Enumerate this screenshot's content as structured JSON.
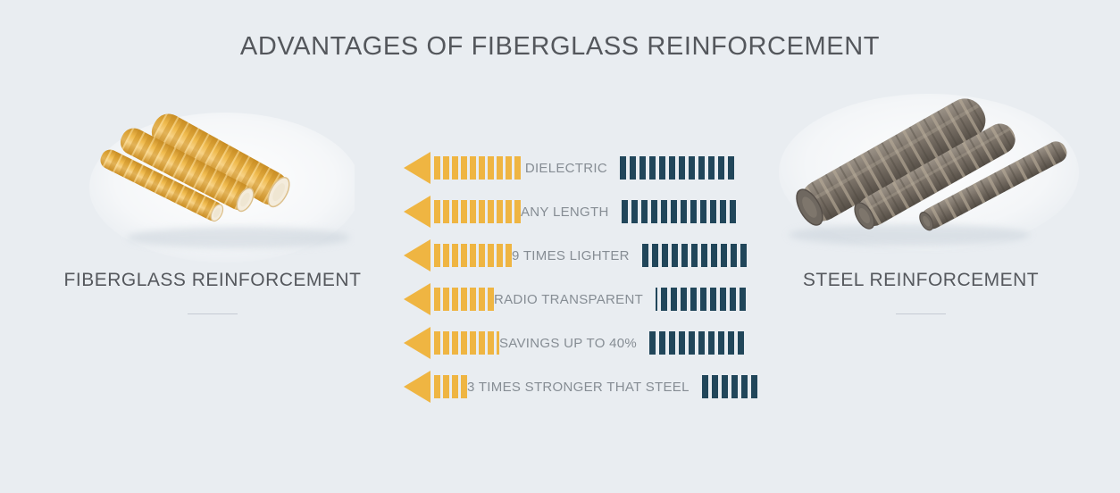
{
  "page": {
    "title": "ADVANTAGES OF FIBERGLASS REINFORCEMENT",
    "background_color": "#E9EDF1"
  },
  "colors": {
    "fiberglass_accent": "#EFB542",
    "steel_accent": "#21465A",
    "title_text": "#54575C",
    "caption_text": "#55585D",
    "row_label_text": "#868D94",
    "divider": "#C5CBD4"
  },
  "fiberglass_section": {
    "caption": "FIBERGLASS REINFORCEMENT",
    "image": "fiberglass-rebar-rods"
  },
  "steel_section": {
    "caption": "STEEL REINFORCEMENT",
    "image": "steel-rebar-rods"
  },
  "comparison": {
    "rows": [
      {
        "label": "DIELECTRIC",
        "fiberglass_segments": 10,
        "steel_segments": 12
      },
      {
        "label": "ANY LENGTH",
        "fiberglass_segments": 10,
        "steel_segments": 12
      },
      {
        "label": "9 TIMES LIGHTER",
        "fiberglass_segments": 9,
        "steel_segments": 11
      },
      {
        "label": "RADIO TRANSPARENT",
        "fiberglass_segments": 7,
        "steel_segments": 9,
        "steel_partial_start": true
      },
      {
        "label": "SAVINGS UP TO 40%",
        "fiberglass_segments": 7,
        "fiberglass_partial_end": true,
        "steel_segments": 10
      },
      {
        "label": "3 TIMES STRONGER THAT STEEL",
        "fiberglass_segments": 4,
        "steel_segments": 6
      }
    ]
  }
}
